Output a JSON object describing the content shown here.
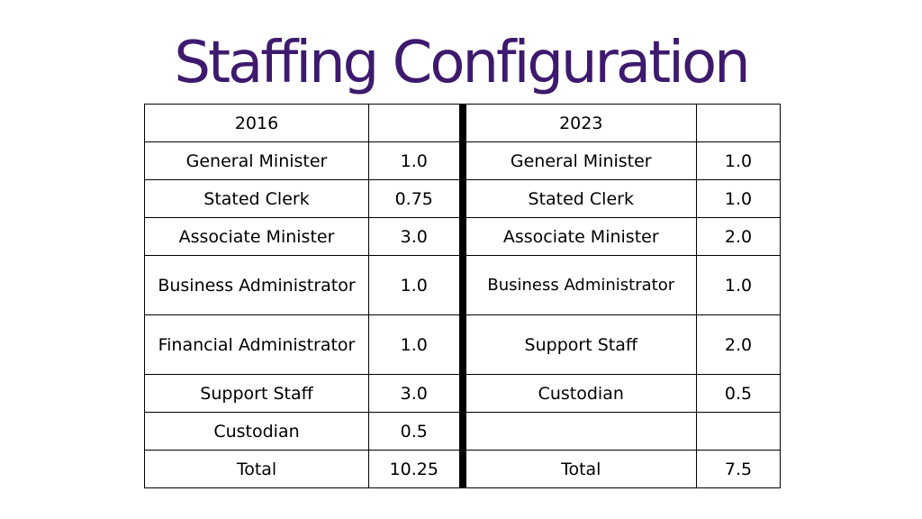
{
  "title": "Staffing Configuration",
  "left_header": {
    "year": "2016",
    "value": ""
  },
  "right_header": {
    "year": "2023",
    "value": ""
  },
  "rows": [
    {
      "left_role": "General Minister",
      "left_fte": "1.0",
      "right_role": "General Minister",
      "right_fte": "1.0"
    },
    {
      "left_role": "Stated Clerk",
      "left_fte": "0.75",
      "right_role": "Stated Clerk",
      "right_fte": "1.0"
    },
    {
      "left_role": "Associate Minister",
      "left_fte": "3.0",
      "right_role": "Associate Minister",
      "right_fte": "2.0"
    },
    {
      "left_role": "Business Administrator",
      "left_fte": "1.0",
      "right_role": "Business Administrator",
      "right_fte": "1.0"
    },
    {
      "left_role": "Financial Administrator",
      "left_fte": "1.0",
      "right_role": "Support Staff",
      "right_fte": "2.0"
    },
    {
      "left_role": "Support Staff",
      "left_fte": "3.0",
      "right_role": "Custodian",
      "right_fte": "0.5"
    },
    {
      "left_role": "Custodian",
      "left_fte": "0.5",
      "right_role": "",
      "right_fte": ""
    }
  ],
  "total": {
    "left_label": "Total",
    "left_value": "10.25",
    "right_label": "Total",
    "right_value": "7.5"
  }
}
